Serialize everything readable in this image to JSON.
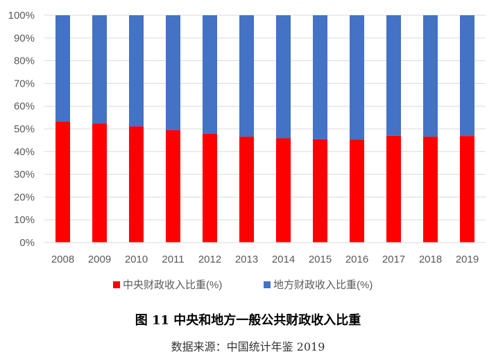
{
  "chart_data": {
    "type": "bar",
    "stacked": true,
    "percent": true,
    "categories": [
      "2008",
      "2009",
      "2010",
      "2011",
      "2012",
      "2013",
      "2014",
      "2015",
      "2016",
      "2017",
      "2018",
      "2019"
    ],
    "series": [
      {
        "name": "中央财政收入比重(%)",
        "color": "#ff0000",
        "values": [
          53.3,
          52.4,
          51.1,
          49.4,
          47.9,
          46.6,
          45.9,
          45.5,
          45.3,
          47.0,
          46.6,
          46.9
        ]
      },
      {
        "name": "地方财政收入比重(%)",
        "color": "#4472c4",
        "values": [
          46.7,
          47.6,
          48.9,
          50.6,
          52.1,
          53.4,
          54.1,
          54.5,
          54.7,
          53.0,
          53.4,
          53.1
        ]
      }
    ],
    "y_ticks": [
      "0%",
      "10%",
      "20%",
      "30%",
      "40%",
      "50%",
      "60%",
      "70%",
      "80%",
      "90%",
      "100%"
    ],
    "ylim": [
      0,
      100
    ],
    "grid": true,
    "legend_position": "bottom",
    "title": "图 11  中央和地方一般公共财政收入比重",
    "source": "数据来源：中国统计年鉴 2019"
  }
}
